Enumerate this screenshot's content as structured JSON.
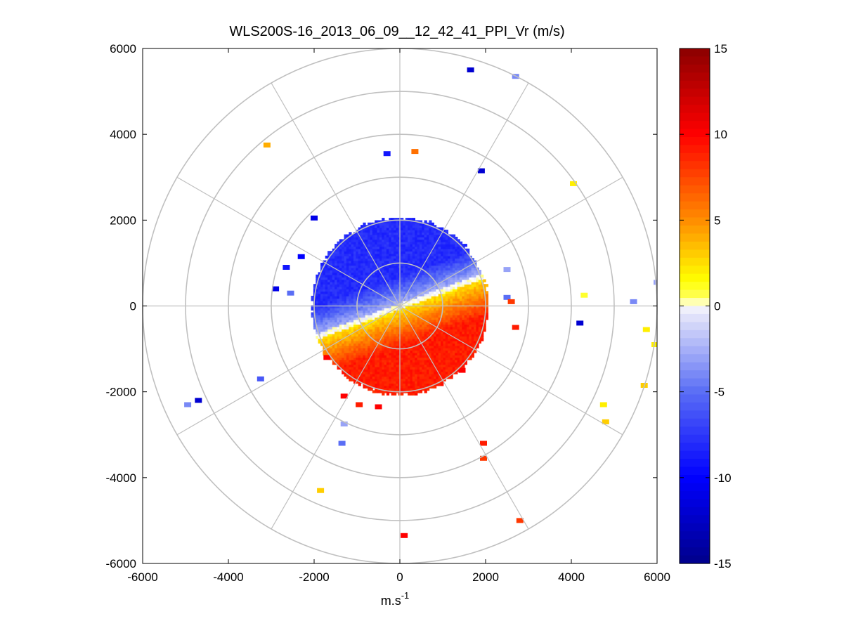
{
  "chart_data": {
    "type": "heatmap",
    "subtype": "polar-ppi",
    "title": "WLS200S-16_2013_06_09__12_42_41_PPI_Vr (m/s)",
    "xlabel": "m.s",
    "xlabel_superscript": "-1",
    "ylabel": "",
    "xlim": [
      -6000,
      6000
    ],
    "ylim": [
      -6000,
      6000
    ],
    "xticks": [
      "-6000",
      "-4000",
      "-2000",
      "0",
      "2000",
      "4000",
      "6000"
    ],
    "yticks": [
      "6000",
      "4000",
      "2000",
      "0",
      "-2000",
      "-4000",
      "-6000"
    ],
    "polar_grid": {
      "rings": [
        1000,
        2000,
        3000,
        4000,
        5000,
        6000
      ],
      "spokes_deg": [
        0,
        30,
        60,
        90,
        120,
        150,
        180,
        210,
        240,
        270,
        300,
        330
      ]
    },
    "colorbar": {
      "min": -15,
      "max": 15,
      "ticks": [
        "15",
        "10",
        "5",
        "0",
        "-5",
        "-10",
        "-15"
      ],
      "colormap": "blue-white-yellow-red",
      "colors": [
        "#00008b",
        "#0000ff",
        "#6a7ff0",
        "#ffffff",
        "#ffff00",
        "#ff8c00",
        "#ff0000",
        "#8b0000"
      ]
    },
    "field": {
      "description_values": "radial velocity, negative (blue) north of shear line, positive (yellow-red) south",
      "range_extent_m": 2100,
      "shear_angle_deg": 20,
      "north_speed": -8,
      "south_speed": 9
    },
    "scattered_points": [
      {
        "x": 1650,
        "y": 5500,
        "v": -12
      },
      {
        "x": 2700,
        "y": 5350,
        "v": -4
      },
      {
        "x": -3100,
        "y": 3750,
        "v": 4
      },
      {
        "x": -300,
        "y": 3550,
        "v": -9
      },
      {
        "x": 350,
        "y": 3600,
        "v": 6
      },
      {
        "x": 1900,
        "y": 3150,
        "v": -12
      },
      {
        "x": 4050,
        "y": 2850,
        "v": 2
      },
      {
        "x": -2000,
        "y": 2050,
        "v": -11
      },
      {
        "x": -2300,
        "y": 1150,
        "v": -10
      },
      {
        "x": -2650,
        "y": 900,
        "v": -9
      },
      {
        "x": -2900,
        "y": 400,
        "v": -11
      },
      {
        "x": -2550,
        "y": 300,
        "v": -5
      },
      {
        "x": 2500,
        "y": 850,
        "v": -3
      },
      {
        "x": 2500,
        "y": 200,
        "v": -5
      },
      {
        "x": 2600,
        "y": 100,
        "v": 8
      },
      {
        "x": 4300,
        "y": 250,
        "v": 1
      },
      {
        "x": 5450,
        "y": 100,
        "v": -4
      },
      {
        "x": 6000,
        "y": 550,
        "v": -3
      },
      {
        "x": 4200,
        "y": -400,
        "v": -12
      },
      {
        "x": 5750,
        "y": -550,
        "v": 2
      },
      {
        "x": 5950,
        "y": -900,
        "v": 2
      },
      {
        "x": 5700,
        "y": -1850,
        "v": 3
      },
      {
        "x": 4750,
        "y": -2300,
        "v": 2
      },
      {
        "x": 4800,
        "y": -2700,
        "v": 3
      },
      {
        "x": 2700,
        "y": -500,
        "v": 9
      },
      {
        "x": 1450,
        "y": -1500,
        "v": 10
      },
      {
        "x": -4700,
        "y": -2200,
        "v": -12
      },
      {
        "x": -4950,
        "y": -2300,
        "v": -4
      },
      {
        "x": -3250,
        "y": -1700,
        "v": -6
      },
      {
        "x": -1700,
        "y": -1200,
        "v": 10
      },
      {
        "x": -1300,
        "y": -2100,
        "v": 10
      },
      {
        "x": -950,
        "y": -2300,
        "v": 9
      },
      {
        "x": -500,
        "y": -2350,
        "v": 10
      },
      {
        "x": -1300,
        "y": -2750,
        "v": -3
      },
      {
        "x": -1350,
        "y": -3200,
        "v": -5
      },
      {
        "x": 1950,
        "y": -3200,
        "v": 9
      },
      {
        "x": 1950,
        "y": -3550,
        "v": 8
      },
      {
        "x": -1850,
        "y": -4300,
        "v": 3
      },
      {
        "x": 2800,
        "y": -5000,
        "v": 8
      },
      {
        "x": 100,
        "y": -5350,
        "v": 10
      }
    ]
  }
}
